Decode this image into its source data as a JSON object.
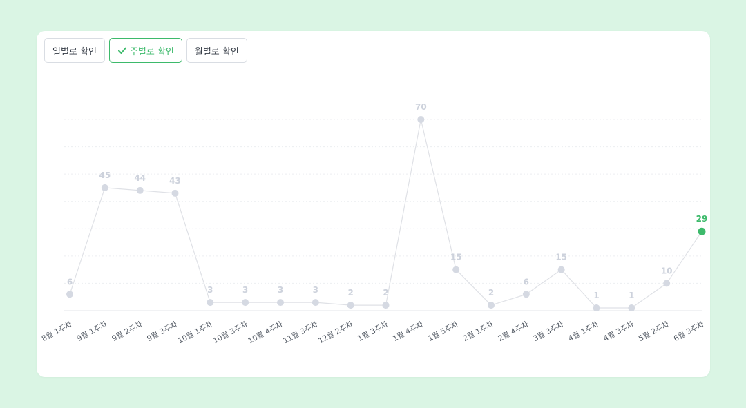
{
  "buttons": [
    {
      "label": "일별로 확인",
      "active": false
    },
    {
      "label": "주별로 확인",
      "active": true
    },
    {
      "label": "월별로 확인",
      "active": false
    }
  ],
  "colors": {
    "background": "#daf5e4",
    "accent": "#3dba6b",
    "series": "#dfe1e6",
    "point": "#d5d9e2",
    "label": "#cdd2dc"
  },
  "chart_data": {
    "type": "line",
    "categories": [
      "8월 1주차",
      "9월 1주차",
      "9월 2주차",
      "9월 3주차",
      "10월 1주차",
      "10월 3주차",
      "10월 4주차",
      "11월 3주차",
      "12월 2주차",
      "1월 3주차",
      "1월 4주차",
      "1월 5주차",
      "2월 1주차",
      "2월 4주차",
      "3월 3주차",
      "4월 1주차",
      "4월 3주차",
      "5월 2주차",
      "6월 3주차"
    ],
    "series": [
      {
        "values": [
          6,
          45,
          44,
          43,
          3,
          3,
          3,
          3,
          2,
          2,
          70,
          15,
          2,
          6,
          15,
          1,
          1,
          10,
          29
        ]
      }
    ],
    "highlight_index": 18,
    "ylim": [
      0,
      70
    ],
    "grid": true,
    "data_labels": true,
    "xlabel": "",
    "ylabel": ""
  }
}
